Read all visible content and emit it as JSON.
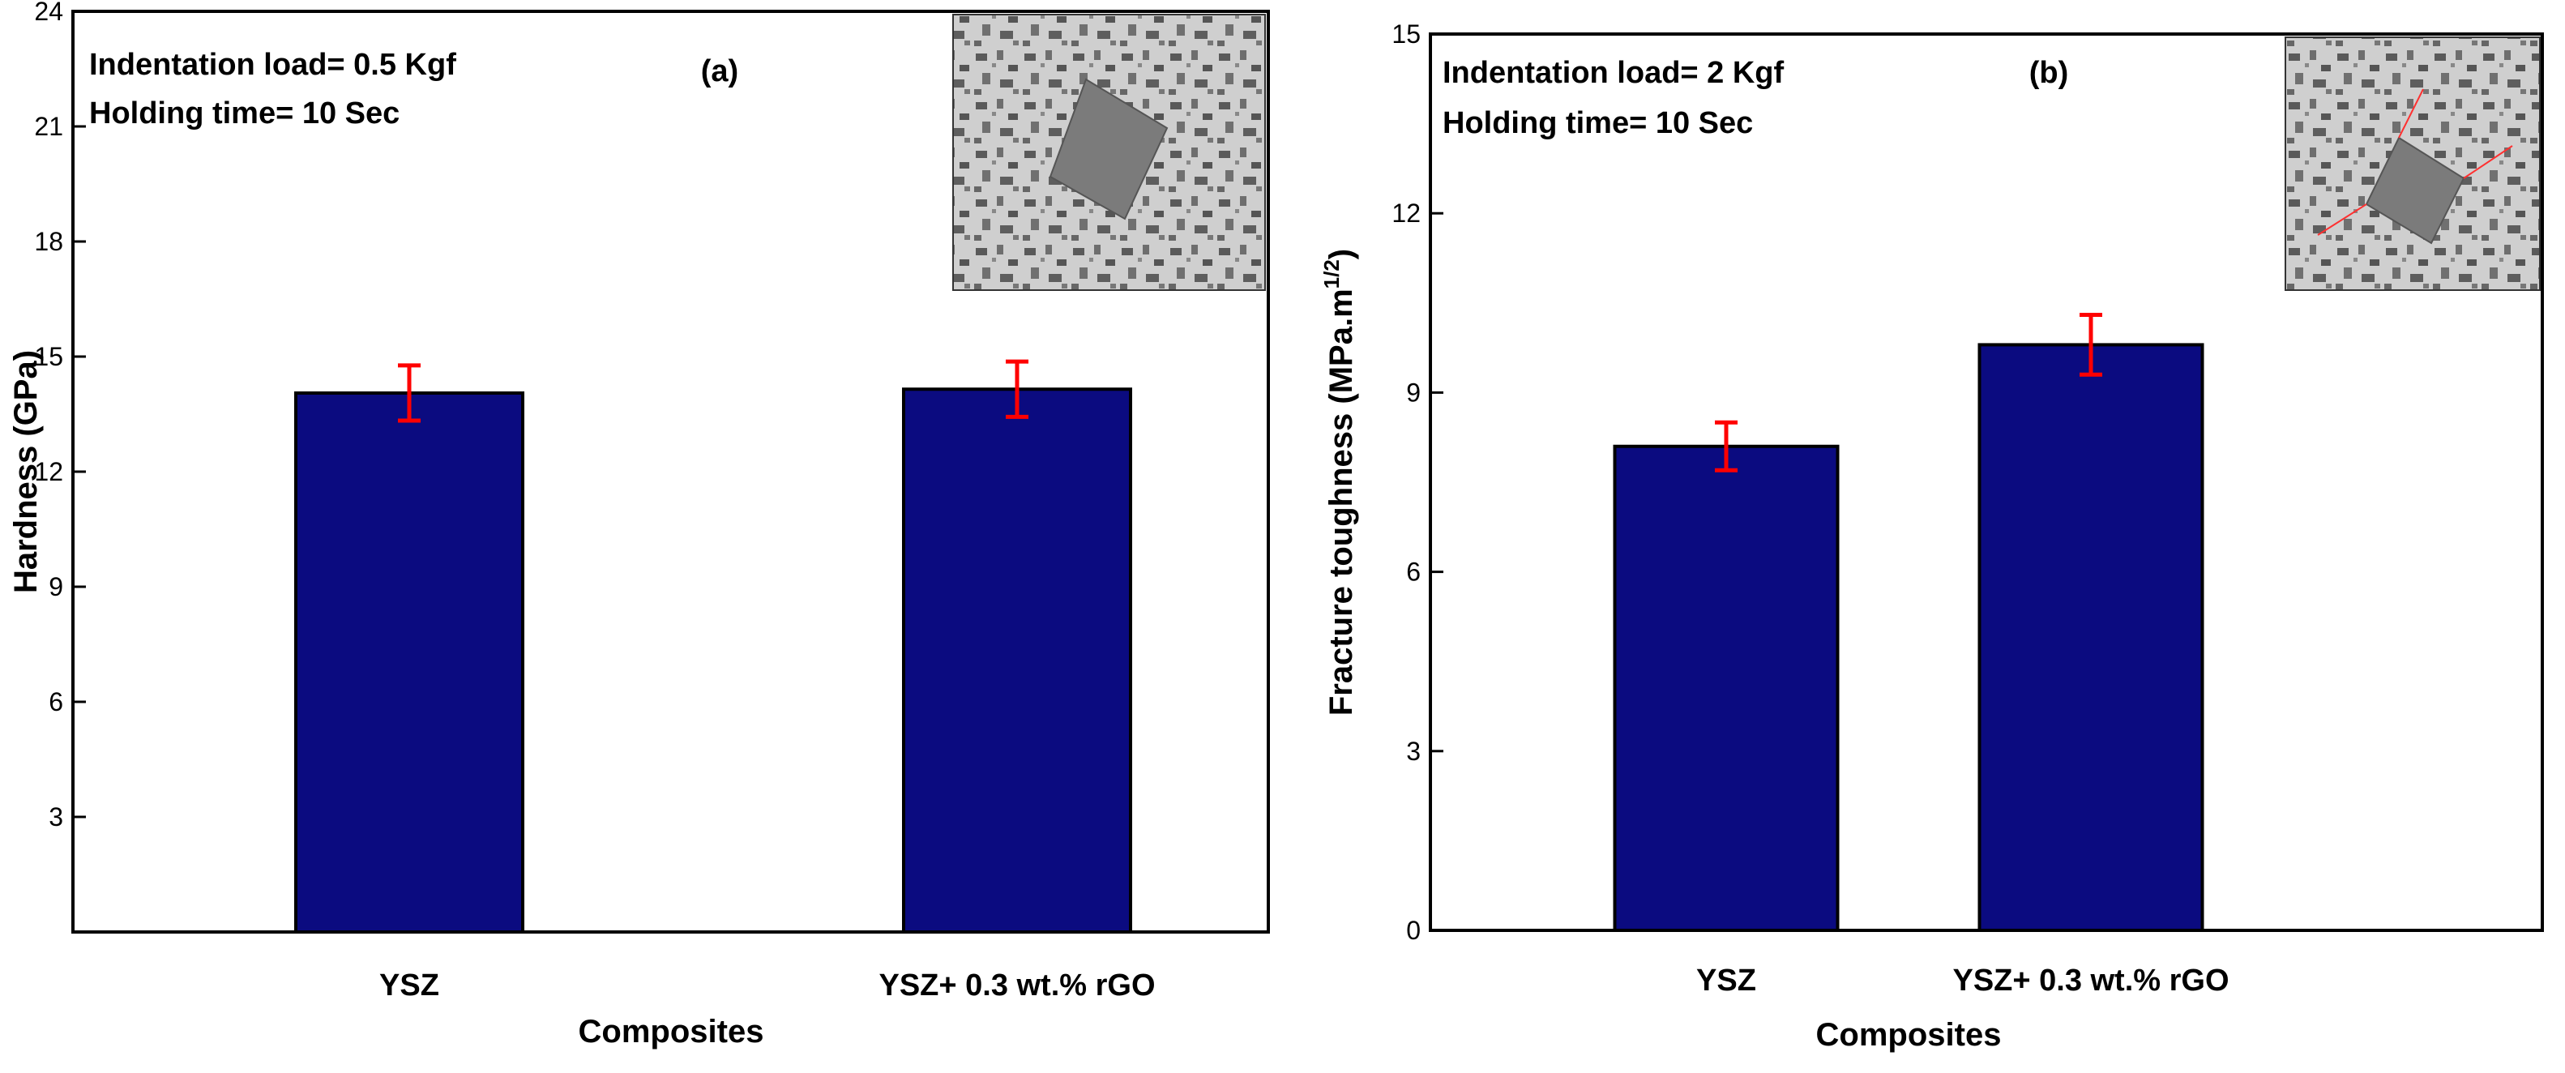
{
  "colors": {
    "bar": "#0b0b80",
    "error": "#ff0000",
    "axis": "#000000",
    "inset_bg": "#a8a8a8"
  },
  "chart_data": [
    {
      "type": "bar",
      "panel_label": "(a)",
      "categories": [
        "YSZ",
        "YSZ+ 0.3 wt.% rGO"
      ],
      "values": [
        14.05,
        14.15
      ],
      "errors": [
        0.72,
        0.72
      ],
      "xlabel": "Composites",
      "ylabel": "Hardness (GPa)",
      "ylabel_sup": "",
      "ylabel_suffix": "",
      "ylim": [
        0,
        24
      ],
      "yticks": [
        3,
        6,
        9,
        12,
        15,
        18,
        21,
        24
      ],
      "annotations": [
        "Indentation load= 0.5 Kgf",
        "Holding time= 10 Sec"
      ],
      "inset": "indentation-micrograph"
    },
    {
      "type": "bar",
      "panel_label": "(b)",
      "categories": [
        "YSZ",
        "YSZ+ 0.3 wt.% rGO"
      ],
      "values": [
        8.1,
        9.8
      ],
      "errors": [
        0.4,
        0.5
      ],
      "xlabel": "Composites",
      "ylabel": "Fracture toughness (MPa.m",
      "ylabel_sup": "1/2",
      "ylabel_suffix": ")",
      "ylim": [
        0,
        15
      ],
      "yticks": [
        0,
        3,
        6,
        9,
        12,
        15
      ],
      "annotations": [
        "Indentation load= 2 Kgf",
        "Holding time= 10 Sec"
      ],
      "inset": "indentation-micrograph-with-cracks"
    }
  ]
}
